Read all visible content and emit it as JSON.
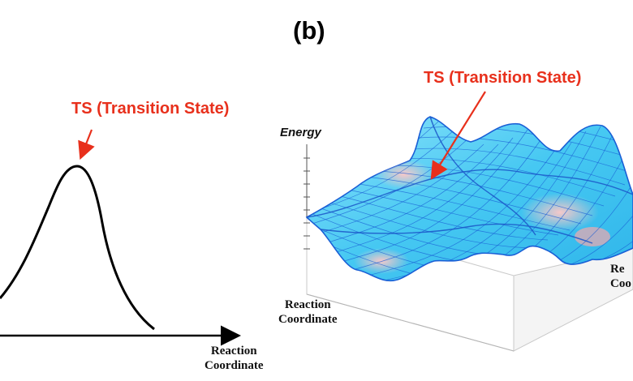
{
  "figure": {
    "panel_label": "(b)"
  },
  "left_plot": {
    "ts_label": "TS (Transition State)",
    "x_axis_label_line1": "Reaction",
    "x_axis_label_line2": "Coordinate",
    "curve_color": "#000000",
    "arrow_color": "#e8301c"
  },
  "right_plot": {
    "ts_label": "TS (Transition State)",
    "energy_label": "Energy",
    "x_axis_label_line1": "Reaction",
    "x_axis_label_line2": "Coordinate",
    "y_axis_label_line1": "Re",
    "y_axis_label_line2": "Coo",
    "surface_color": "#4fd0f5",
    "mesh_color": "#1a5fd6",
    "minimum_color": "#f3b8bd"
  }
}
